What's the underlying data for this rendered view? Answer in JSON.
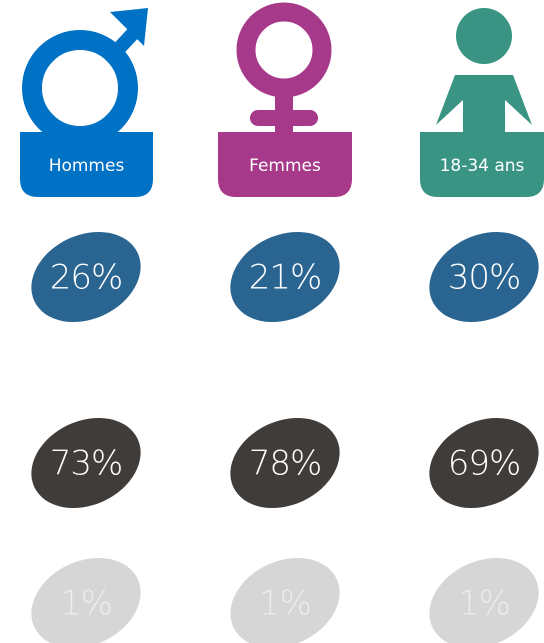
{
  "groups": [
    {
      "label": "Hommes",
      "values": [
        "26%",
        "73%",
        "1%"
      ]
    },
    {
      "label": "Femmes",
      "values": [
        "21%",
        "78%",
        "1%"
      ]
    },
    {
      "label": "18-34 ans",
      "values": [
        "30%",
        "69%",
        "1%"
      ]
    }
  ]
}
